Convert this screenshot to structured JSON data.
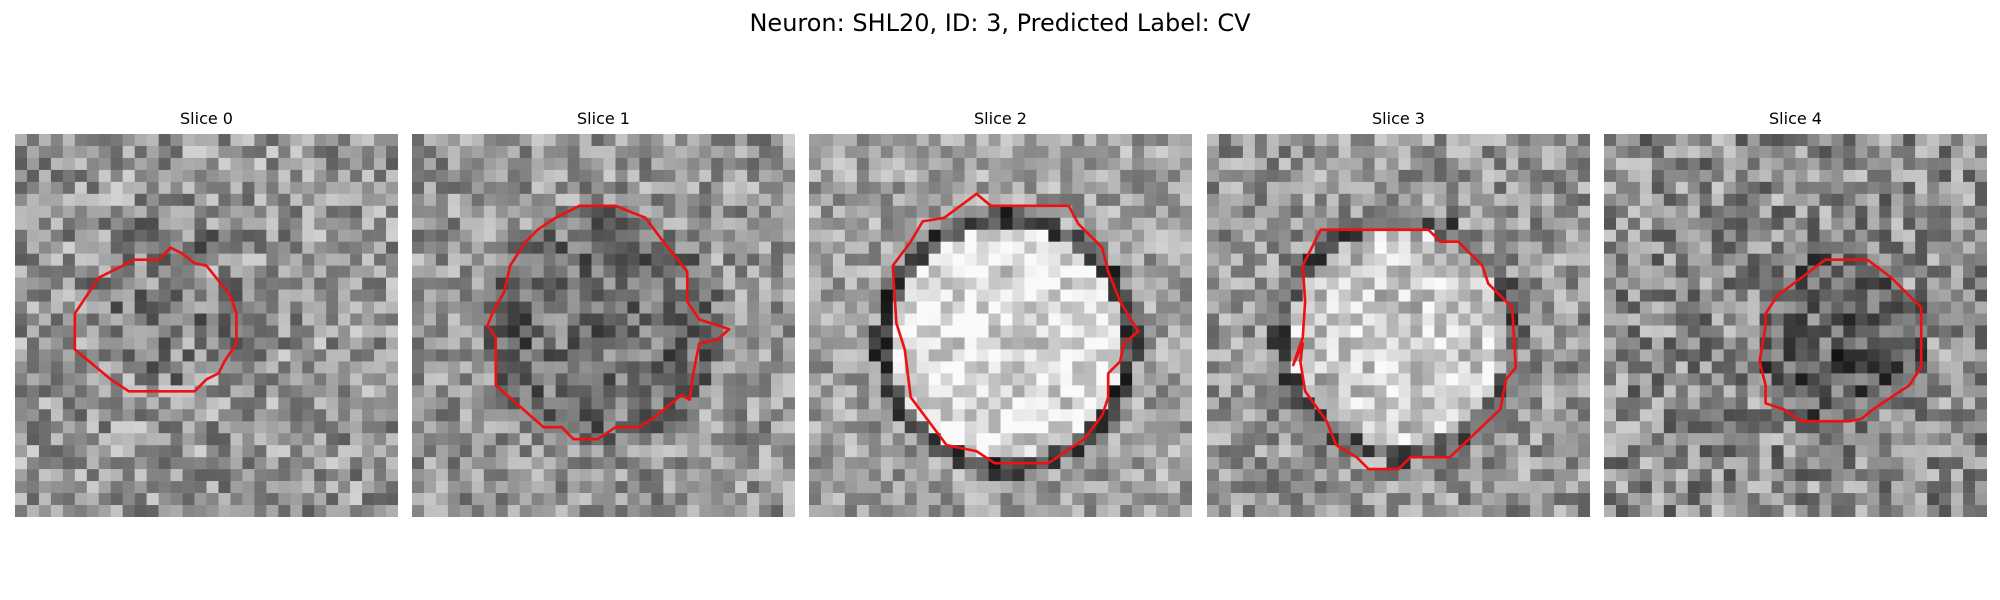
{
  "figure": {
    "title": "Neuron: SHL20, ID: 3, Predicted Label: CV"
  },
  "panels": [
    {
      "title": "Slice 0"
    },
    {
      "title": "Slice 1"
    },
    {
      "title": "Slice 2"
    },
    {
      "title": "Slice 3"
    },
    {
      "title": "Slice 4"
    }
  ],
  "colors": {
    "contour": "#ee1111",
    "background": "#ffffff"
  }
}
